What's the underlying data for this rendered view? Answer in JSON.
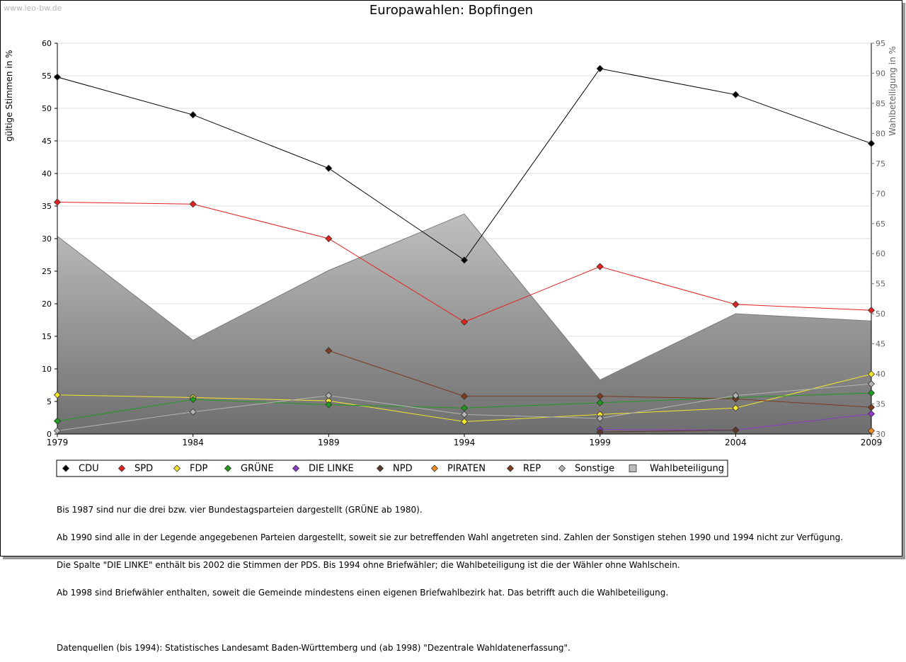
{
  "watermark": "www.leo-bw.de",
  "chart_data": {
    "type": "line",
    "title": "Europawahlen: Bopfingen",
    "ylabel": "gültige Stimmen in %",
    "y2label": "Wahlbeteiligung in %",
    "ylim": [
      0,
      60
    ],
    "y2lim": [
      30,
      95
    ],
    "yticks": [
      0,
      5,
      10,
      15,
      20,
      25,
      30,
      35,
      40,
      45,
      50,
      55,
      60
    ],
    "y2ticks": [
      30,
      35,
      40,
      45,
      50,
      55,
      60,
      65,
      70,
      75,
      80,
      85,
      90,
      95
    ],
    "x": [
      "1979",
      "1984",
      "1989",
      "1994",
      "1999",
      "2004",
      "2009"
    ],
    "grid": true,
    "legend_position": "bottom",
    "series": [
      {
        "name": "CDU",
        "color": "#000000",
        "values": [
          54.8,
          49.0,
          40.8,
          26.7,
          56.1,
          52.1,
          44.6
        ]
      },
      {
        "name": "SPD",
        "color": "#e32020",
        "values": [
          35.6,
          35.3,
          30.0,
          17.2,
          25.7,
          19.9,
          19.0
        ]
      },
      {
        "name": "FDP",
        "color": "#f5e62a",
        "values": [
          6.0,
          5.6,
          5.1,
          1.9,
          3.0,
          4.0,
          9.2
        ]
      },
      {
        "name": "GRÜNE",
        "color": "#1f9a1f",
        "values": [
          2.0,
          5.3,
          4.5,
          4.0,
          4.8,
          5.6,
          6.3
        ]
      },
      {
        "name": "DIE LINKE",
        "color": "#8a3cc8",
        "values": [
          null,
          null,
          null,
          null,
          0.7,
          0.6,
          3.1
        ]
      },
      {
        "name": "NPD",
        "color": "#5a3a2a",
        "values": [
          null,
          null,
          null,
          null,
          0.3,
          0.6,
          null
        ]
      },
      {
        "name": "PIRATEN",
        "color": "#f08a1c",
        "values": [
          null,
          null,
          null,
          null,
          null,
          null,
          0.5
        ]
      },
      {
        "name": "REP",
        "color": "#7a3b1e",
        "values": [
          null,
          null,
          12.8,
          5.8,
          5.8,
          5.4,
          4.1
        ]
      },
      {
        "name": "Sonstige",
        "color": "#b4b4b4",
        "values": [
          0.5,
          3.4,
          5.9,
          3.0,
          2.4,
          5.9,
          7.7
        ]
      }
    ],
    "turnout": {
      "name": "Wahlbeteiligung",
      "axis": "right",
      "values": [
        62.9,
        45.6,
        57.2,
        66.6,
        39.0,
        50.0,
        48.8
      ]
    }
  },
  "notes": [
    "Bis 1987 sind nur die drei bzw. vier Bundestagsparteien dargestellt (GRÜNE ab 1980).",
    "Ab 1990 sind alle in der Legende angegebenen Parteien dargestellt, soweit sie zur betreffenden Wahl angetreten sind. Zahlen der Sonstigen stehen 1990 und 1994 nicht zur Verfügung.",
    "Die Spalte \"DIE LINKE\" enthält bis 2002 die Stimmen der PDS. Bis 1994 ohne Briefwähler; die Wahlbeteiligung ist die der Wähler ohne Wahlschein.",
    "Ab 1998 sind Briefwähler enthalten, soweit die Gemeinde mindestens einen eigenen Briefwahlbezirk hat. Das betrifft auch die Wahlbeteiligung.",
    "",
    "Datenquellen (bis 1994): Statistisches Landesamt Baden-Württemberg und (ab 1998) \"Dezentrale Wahldatenerfassung\"."
  ]
}
